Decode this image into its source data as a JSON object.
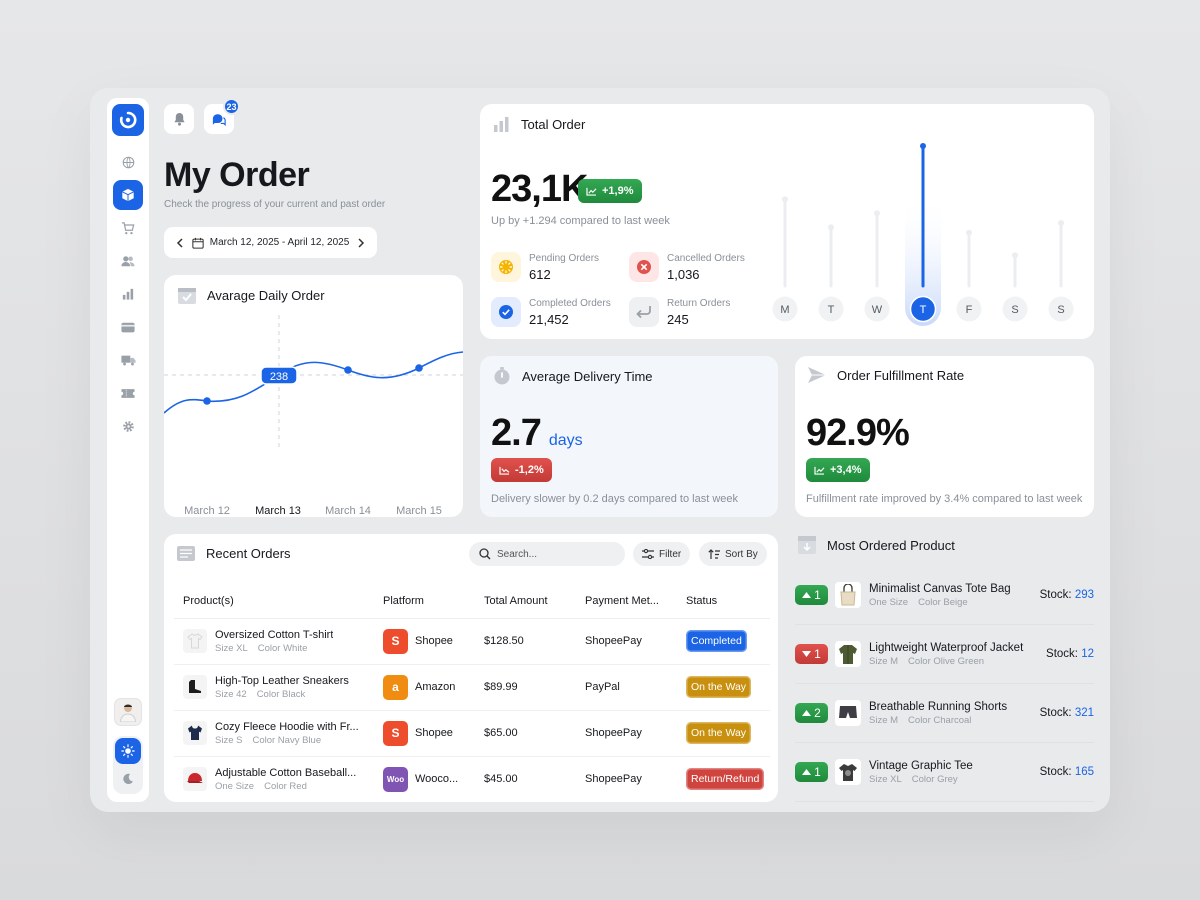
{
  "colors": {
    "accent": "#1b64e6",
    "green": "#2e9a47",
    "red": "#d0443f",
    "amber": "#c9900f"
  },
  "sidebar": {
    "icons": [
      "globe-icon",
      "box-icon",
      "cart-icon",
      "users-icon",
      "bar-chart-icon",
      "card-icon",
      "truck-icon",
      "ticket-icon",
      "gear-icon"
    ],
    "active": "box-icon"
  },
  "header": {
    "notification_badge": "23",
    "title": "My Order",
    "subtitle": "Check the progress of your current and past order",
    "date_range": "March 12, 2025 - April 12, 2025"
  },
  "avg_daily": {
    "title": "Avarage Daily Order",
    "highlight_value": "238",
    "dates": [
      "March 12",
      "March 13",
      "March 14",
      "March 15"
    ],
    "active_date": "March 13"
  },
  "total_order": {
    "title": "Total Order",
    "value": "23,1K",
    "change": "+1,9%",
    "note": "Up by +1.294 compared to last week",
    "stats": [
      {
        "label": "Pending Orders",
        "value": "612"
      },
      {
        "label": "Cancelled Orders",
        "value": "1,036"
      },
      {
        "label": "Completed Orders",
        "value": "21,452"
      },
      {
        "label": "Return Orders",
        "value": "245"
      }
    ],
    "weekday_levels": [
      0.62,
      0.42,
      0.52,
      1.0,
      0.38,
      0.22,
      0.45
    ],
    "days": [
      "M",
      "T",
      "W",
      "T",
      "F",
      "S",
      "S"
    ],
    "active_day_index": 3
  },
  "delivery": {
    "title": "Average Delivery Time",
    "value": "2.7",
    "unit": "days",
    "change": "-1,2%",
    "note": "Delivery slower by 0.2 days compared to last week"
  },
  "fulfillment": {
    "title": "Order Fulfillment Rate",
    "value": "92.9%",
    "change": "+3,4%",
    "note": "Fulfillment rate improved by 3.4% compared to last week"
  },
  "recent_orders": {
    "title": "Recent Orders",
    "search_placeholder": "Search...",
    "filter_label": "Filter",
    "sort_label": "Sort By",
    "columns": [
      "Product(s)",
      "Platform",
      "Total Amount",
      "Payment Met...",
      "Status"
    ],
    "rows": [
      {
        "name": "Oversized Cotton T-shirt",
        "size": "Size XL",
        "color": "Color White",
        "platform": "Shopee",
        "amount": "$128.50",
        "payment": "ShopeePay",
        "status": "Completed",
        "status_color": "#1b64e6",
        "platform_color": "#ee4d2d",
        "platform_glyph": "S"
      },
      {
        "name": "High-Top Leather Sneakers",
        "size": "Size 42",
        "color": "Color Black",
        "platform": "Amazon",
        "amount": "$89.99",
        "payment": "PayPal",
        "status": "On the Way",
        "status_color": "#c9900f",
        "platform_color": "#f08c12",
        "platform_glyph": "a"
      },
      {
        "name": "Cozy Fleece Hoodie with Fr...",
        "size": "Size S",
        "color": "Color Navy Blue",
        "platform": "Shopee",
        "amount": "$65.00",
        "payment": "ShopeePay",
        "status": "On the Way",
        "status_color": "#c9900f",
        "platform_color": "#ee4d2d",
        "platform_glyph": "S"
      },
      {
        "name": "Adjustable Cotton Baseball...",
        "size": "One Size",
        "color": "Color Red",
        "platform": "Wooco...",
        "amount": "$45.00",
        "payment": "ShopeePay",
        "status": "Return/Refund",
        "status_color": "#d0443f",
        "platform_color": "#7f54b3",
        "platform_glyph": "Woo"
      }
    ]
  },
  "most_ordered": {
    "title": "Most Ordered Product",
    "stock_label": "Stock:",
    "items": [
      {
        "rank": "1",
        "trend": "up",
        "name": "Minimalist Canvas Tote Bag",
        "size": "One Size",
        "color": "Color Beige",
        "stock": "293"
      },
      {
        "rank": "1",
        "trend": "down",
        "name": "Lightweight Waterproof Jacket",
        "size": "Size M",
        "color": "Color Olive Green",
        "stock": "12"
      },
      {
        "rank": "2",
        "trend": "up",
        "name": "Breathable Running Shorts",
        "size": "Size M",
        "color": "Color Charcoal",
        "stock": "321"
      },
      {
        "rank": "1",
        "trend": "up",
        "name": "Vintage Graphic Tee",
        "size": "Size XL",
        "color": "Color Grey",
        "stock": "165"
      }
    ]
  }
}
